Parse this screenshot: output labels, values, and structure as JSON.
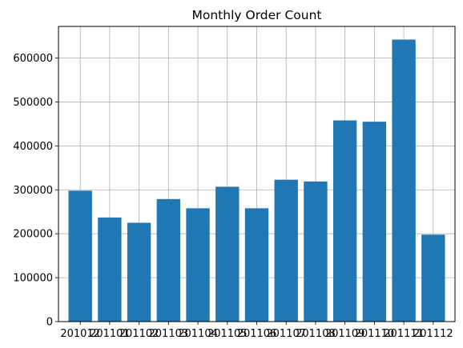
{
  "chart_data": {
    "type": "bar",
    "title": "Monthly Order Count",
    "xlabel": "",
    "ylabel": "",
    "categories": [
      "201012",
      "201101",
      "201102",
      "201103",
      "201104",
      "201105",
      "201106",
      "201107",
      "201108",
      "201109",
      "201110",
      "201111",
      "201112"
    ],
    "values": [
      298000,
      237000,
      225000,
      279000,
      258000,
      307000,
      258000,
      323000,
      319000,
      458000,
      455000,
      642000,
      198000
    ],
    "ylim": [
      0,
      672000
    ],
    "yticks": [
      0,
      100000,
      200000,
      300000,
      400000,
      500000,
      600000
    ],
    "ytick_labels": [
      "0",
      "100000",
      "200000",
      "300000",
      "400000",
      "500000",
      "600000"
    ],
    "grid": true,
    "bar_color": "#1f77b4",
    "grid_color": "#b0b0b0"
  }
}
